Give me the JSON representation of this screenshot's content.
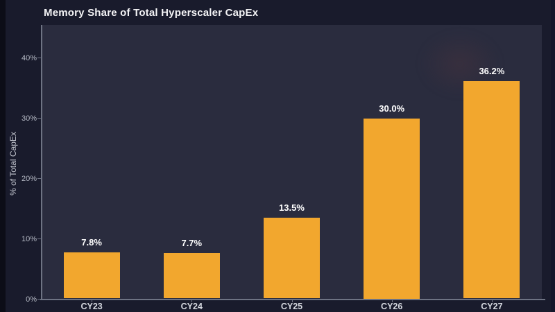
{
  "title": "Memory Share of Total Hyperscaler CapEx",
  "chart_data": {
    "type": "bar",
    "title": "Memory Share of Total Hyperscaler CapEx",
    "categories": [
      "CY23",
      "CY24",
      "CY25",
      "CY26",
      "CY27"
    ],
    "values": [
      7.8,
      7.7,
      13.5,
      30.0,
      36.2
    ],
    "value_labels": [
      "7.8%",
      "7.7%",
      "13.5%",
      "30.0%",
      "36.2%"
    ],
    "xlabel": "",
    "ylabel": "% of Total CapEx",
    "ylim": [
      0,
      45.5
    ],
    "yticks": [
      {
        "value": 0,
        "label": "0%"
      },
      {
        "value": 10,
        "label": "10%"
      },
      {
        "value": 20,
        "label": "20%"
      },
      {
        "value": 30,
        "label": "30%"
      },
      {
        "value": 40,
        "label": "40%"
      }
    ],
    "grid": false,
    "legend": "none",
    "colors": {
      "bar": "#F2A72E",
      "page_background": "#191B2C",
      "plot_background": "#2A2C3E",
      "axis_line": "#6E7383",
      "value_label": "#FFFFFF",
      "tick_label": "#B4B8C3",
      "category_label": "#D4D7DE",
      "title": "#F3F3F5"
    }
  }
}
